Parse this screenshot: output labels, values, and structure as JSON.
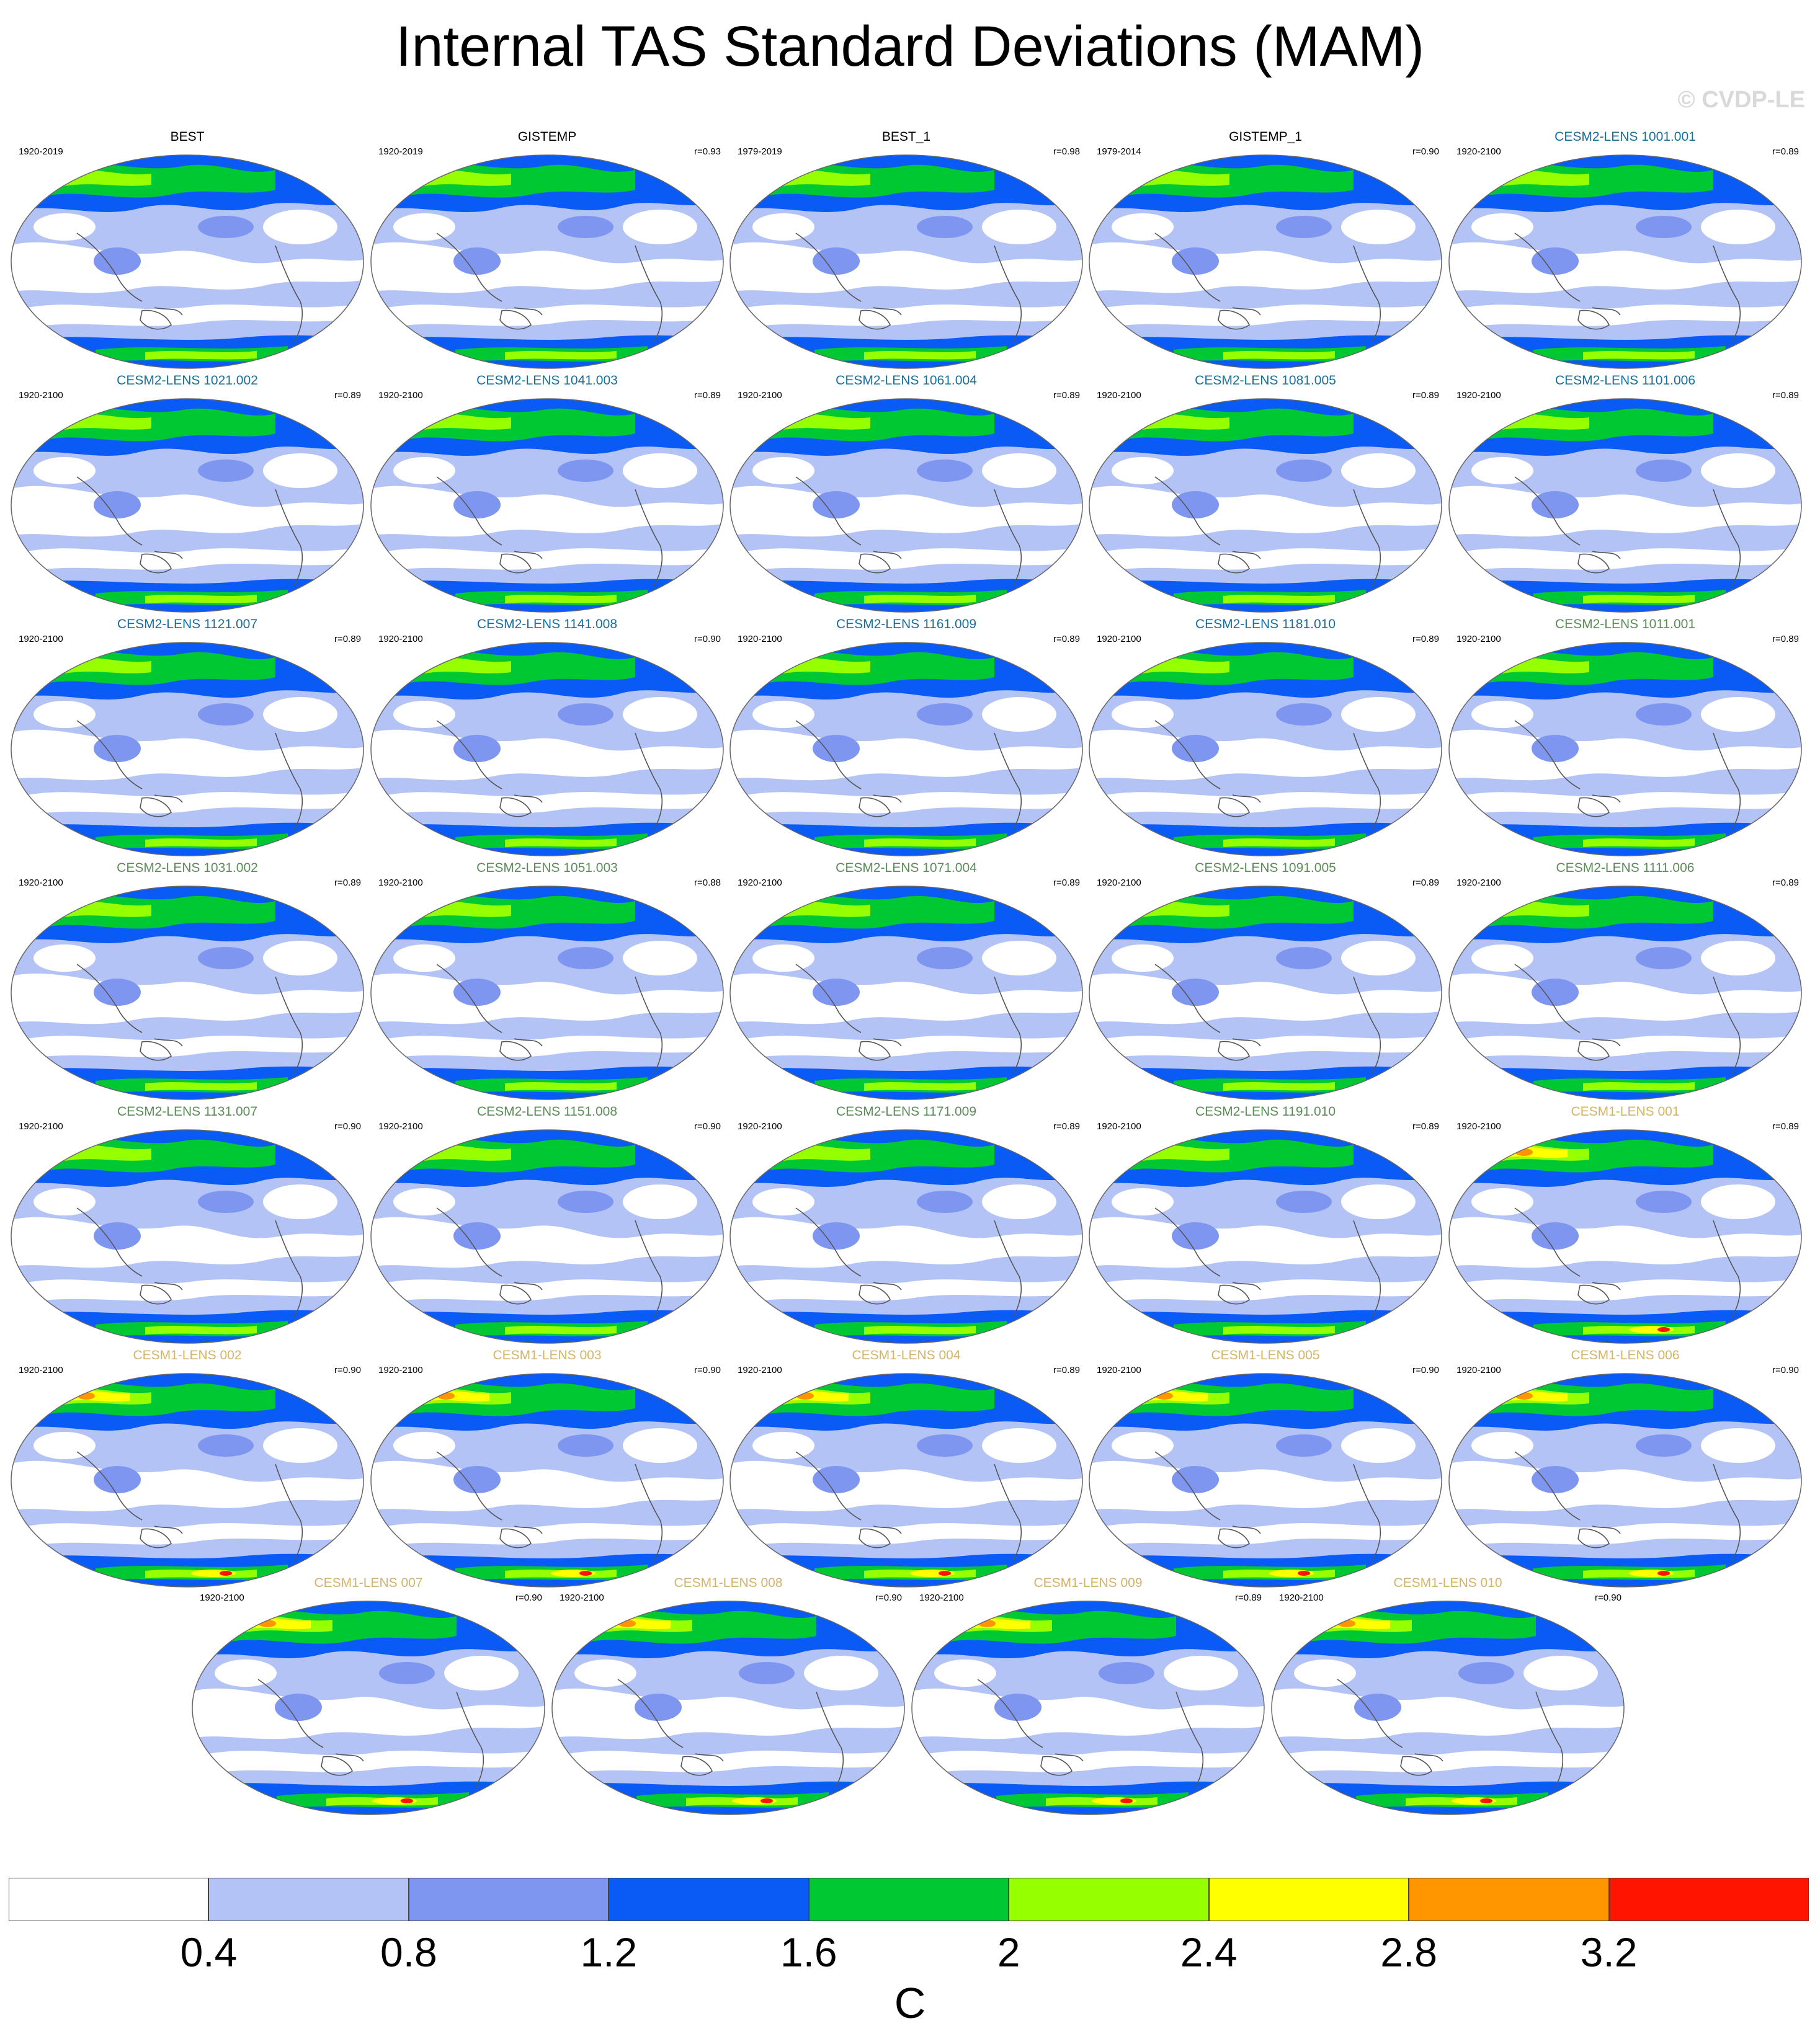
{
  "figure": {
    "title": "Internal TAS Standard Deviations (MAM)",
    "watermark": "© CVDP-LE",
    "unit_label": "C"
  },
  "colors": {
    "title_obs": "#000000",
    "title_cesm2_smbb": "#1a6e9a",
    "title_cesm2_cmip6": "#5d8c5a",
    "title_cesm1": "#d2b46a",
    "coastline": "#555555",
    "map_outline": "#666666"
  },
  "colorbar": {
    "tick_labels": [
      "0.4",
      "0.8",
      "1.2",
      "1.6",
      "2",
      "2.4",
      "2.8",
      "3.2"
    ],
    "bin_colors": [
      "#ffffff",
      "#b4c3f5",
      "#7f96f0",
      "#0a5af5",
      "#00c832",
      "#96ff00",
      "#ffff00",
      "#ff9600",
      "#ff1400"
    ]
  },
  "panels": [
    {
      "title": "BEST",
      "years": "1920-2019",
      "r": "",
      "group": "obs"
    },
    {
      "title": "GISTEMP",
      "years": "1920-2019",
      "r": "r=0.93",
      "group": "obs"
    },
    {
      "title": "BEST_1",
      "years": "1979-2019",
      "r": "r=0.98",
      "group": "obs"
    },
    {
      "title": "GISTEMP_1",
      "years": "1979-2014",
      "r": "r=0.90",
      "group": "obs"
    },
    {
      "title": "CESM2-LENS 1001.001",
      "years": "1920-2100",
      "r": "r=0.89",
      "group": "cesm2_smbb"
    },
    {
      "title": "CESM2-LENS 1021.002",
      "years": "1920-2100",
      "r": "r=0.89",
      "group": "cesm2_smbb"
    },
    {
      "title": "CESM2-LENS 1041.003",
      "years": "1920-2100",
      "r": "r=0.89",
      "group": "cesm2_smbb"
    },
    {
      "title": "CESM2-LENS 1061.004",
      "years": "1920-2100",
      "r": "r=0.89",
      "group": "cesm2_smbb"
    },
    {
      "title": "CESM2-LENS 1081.005",
      "years": "1920-2100",
      "r": "r=0.89",
      "group": "cesm2_smbb"
    },
    {
      "title": "CESM2-LENS 1101.006",
      "years": "1920-2100",
      "r": "r=0.89",
      "group": "cesm2_smbb"
    },
    {
      "title": "CESM2-LENS 1121.007",
      "years": "1920-2100",
      "r": "r=0.89",
      "group": "cesm2_smbb"
    },
    {
      "title": "CESM2-LENS 1141.008",
      "years": "1920-2100",
      "r": "r=0.90",
      "group": "cesm2_smbb"
    },
    {
      "title": "CESM2-LENS 1161.009",
      "years": "1920-2100",
      "r": "r=0.89",
      "group": "cesm2_smbb"
    },
    {
      "title": "CESM2-LENS 1181.010",
      "years": "1920-2100",
      "r": "r=0.89",
      "group": "cesm2_smbb"
    },
    {
      "title": "CESM2-LENS 1011.001",
      "years": "1920-2100",
      "r": "r=0.89",
      "group": "cesm2_cmip6"
    },
    {
      "title": "CESM2-LENS 1031.002",
      "years": "1920-2100",
      "r": "r=0.89",
      "group": "cesm2_cmip6"
    },
    {
      "title": "CESM2-LENS 1051.003",
      "years": "1920-2100",
      "r": "r=0.88",
      "group": "cesm2_cmip6"
    },
    {
      "title": "CESM2-LENS 1071.004",
      "years": "1920-2100",
      "r": "r=0.89",
      "group": "cesm2_cmip6"
    },
    {
      "title": "CESM2-LENS 1091.005",
      "years": "1920-2100",
      "r": "r=0.89",
      "group": "cesm2_cmip6"
    },
    {
      "title": "CESM2-LENS 1111.006",
      "years": "1920-2100",
      "r": "r=0.89",
      "group": "cesm2_cmip6"
    },
    {
      "title": "CESM2-LENS 1131.007",
      "years": "1920-2100",
      "r": "r=0.90",
      "group": "cesm2_cmip6"
    },
    {
      "title": "CESM2-LENS 1151.008",
      "years": "1920-2100",
      "r": "r=0.90",
      "group": "cesm2_cmip6"
    },
    {
      "title": "CESM2-LENS 1171.009",
      "years": "1920-2100",
      "r": "r=0.89",
      "group": "cesm2_cmip6"
    },
    {
      "title": "CESM2-LENS 1191.010",
      "years": "1920-2100",
      "r": "r=0.89",
      "group": "cesm2_cmip6"
    },
    {
      "title": "CESM1-LENS 001",
      "years": "1920-2100",
      "r": "r=0.89",
      "group": "cesm1"
    },
    {
      "title": "CESM1-LENS 002",
      "years": "1920-2100",
      "r": "r=0.90",
      "group": "cesm1"
    },
    {
      "title": "CESM1-LENS 003",
      "years": "1920-2100",
      "r": "r=0.90",
      "group": "cesm1"
    },
    {
      "title": "CESM1-LENS 004",
      "years": "1920-2100",
      "r": "r=0.89",
      "group": "cesm1"
    },
    {
      "title": "CESM1-LENS 005",
      "years": "1920-2100",
      "r": "r=0.90",
      "group": "cesm1"
    },
    {
      "title": "CESM1-LENS 006",
      "years": "1920-2100",
      "r": "r=0.90",
      "group": "cesm1"
    },
    {
      "title": "CESM1-LENS 007",
      "years": "1920-2100",
      "r": "r=0.90",
      "group": "cesm1"
    },
    {
      "title": "CESM1-LENS 008",
      "years": "1920-2100",
      "r": "r=0.90",
      "group": "cesm1"
    },
    {
      "title": "CESM1-LENS 009",
      "years": "1920-2100",
      "r": "r=0.89",
      "group": "cesm1"
    },
    {
      "title": "CESM1-LENS 010",
      "years": "1920-2100",
      "r": "r=0.90",
      "group": "cesm1"
    }
  ]
}
